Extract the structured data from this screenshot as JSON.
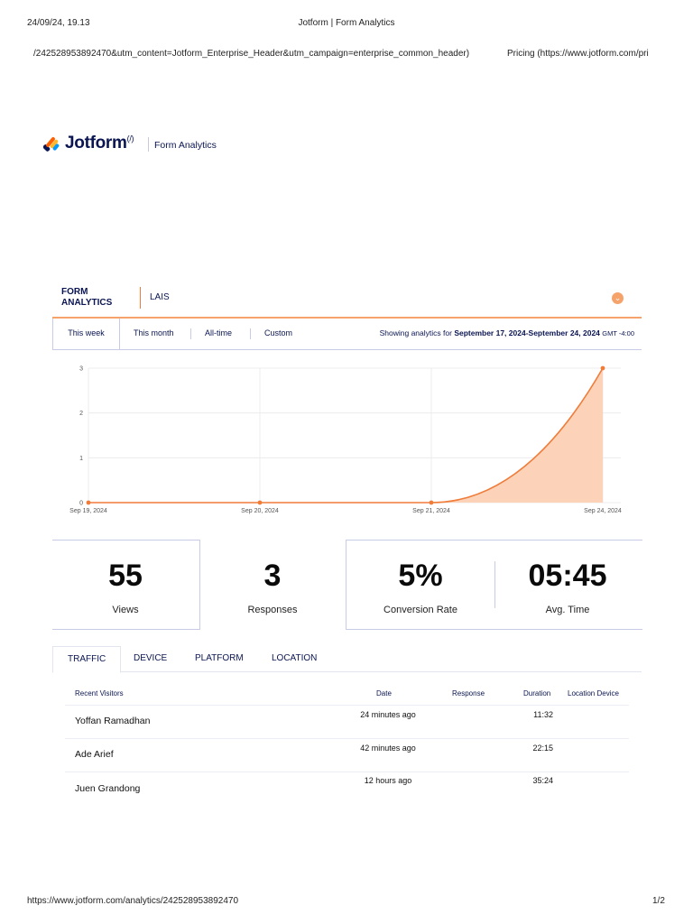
{
  "print_header": {
    "datetime": "24/09/24, 19.13",
    "page_title": "Jotform | Form Analytics",
    "url_fragment_left": "/242528953892470&utm_content=Jotform_Enterprise_Header&utm_campaign=enterprise_common_header)",
    "url_fragment_right": "Pricing (https://www.jotform.com/pri"
  },
  "brand": {
    "logo_text": "Jotform",
    "logo_sup": "(/)",
    "product": "Form Analytics"
  },
  "analytics_header": {
    "title": "FORM ANALYTICS",
    "form_name": "LAIS",
    "toggle_icon": "chevron-down-icon"
  },
  "range_tabs": [
    {
      "label": "This week",
      "active": true
    },
    {
      "label": "This month",
      "active": false
    },
    {
      "label": "All-time",
      "active": false
    },
    {
      "label": "Custom",
      "active": false
    }
  ],
  "range_info": {
    "prefix": "Showing analytics for",
    "range": "September 17, 2024-September 24, 2024",
    "timezone": "GMT -4:00"
  },
  "chart_data": {
    "type": "area",
    "x": [
      "Sep 19, 2024",
      "Sep 20, 2024",
      "Sep 21, 2024",
      "Sep 24, 2024"
    ],
    "y_ticks": [
      0,
      1,
      2,
      3
    ],
    "ylim": [
      0,
      3
    ],
    "series": [
      {
        "values": [
          0,
          0,
          0,
          3
        ]
      }
    ],
    "color": "#f07c3a",
    "fill": "#fcd3b8",
    "grid": true
  },
  "stats": [
    {
      "value": "55",
      "label": "Views"
    },
    {
      "value": "3",
      "label": "Responses"
    },
    {
      "value": "5%",
      "label": "Conversion Rate"
    },
    {
      "value": "05:45",
      "label": "Avg. Time"
    }
  ],
  "detail_tabs": [
    {
      "label": "TRAFFIC",
      "active": true
    },
    {
      "label": "DEVICE",
      "active": false
    },
    {
      "label": "PLATFORM",
      "active": false
    },
    {
      "label": "LOCATION",
      "active": false
    }
  ],
  "table": {
    "columns": [
      "Recent Visitors",
      "Date",
      "Response",
      "Duration",
      "Location Device"
    ],
    "rows": [
      {
        "name": "Yoffan Ramadhan",
        "date": "24 minutes ago",
        "duration": "11:32"
      },
      {
        "name": "Ade Arief",
        "date": "42 minutes ago",
        "duration": "22:15"
      },
      {
        "name": "Juen Grandong",
        "date": "12 hours ago",
        "duration": "35:24"
      }
    ]
  },
  "footer": {
    "url": "https://www.jotform.com/analytics/242528953892470",
    "page": "1/2"
  }
}
